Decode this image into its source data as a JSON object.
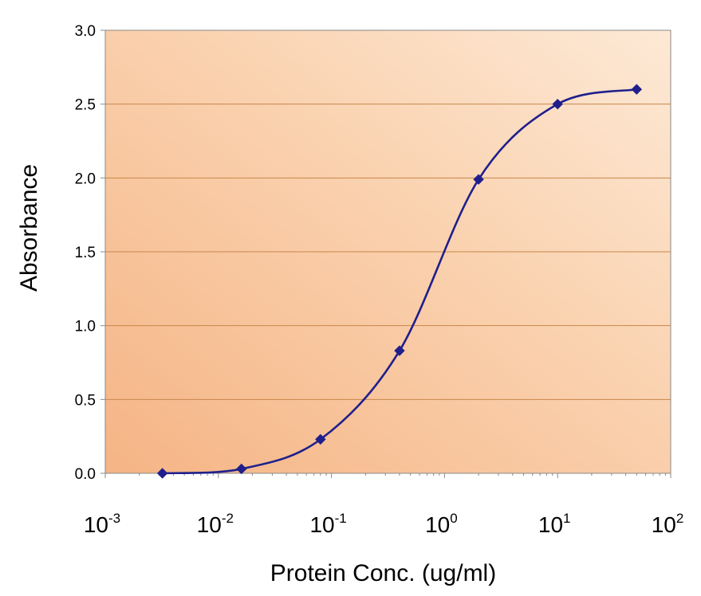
{
  "chart_data": {
    "type": "line",
    "title": "",
    "xlabel": "Protein Conc. (ug/ml)",
    "ylabel": "Absorbance",
    "x_scale": "log10",
    "xlim": [
      0.001,
      100
    ],
    "ylim": [
      0,
      3.0
    ],
    "y_ticks": [
      "0.0",
      "0.5",
      "1.0",
      "1.5",
      "2.0",
      "2.5",
      "3.0"
    ],
    "x_ticks": [
      {
        "base": "10",
        "exp": "-3"
      },
      {
        "base": "10",
        "exp": "-2"
      },
      {
        "base": "10",
        "exp": "-1"
      },
      {
        "base": "10",
        "exp": "0"
      },
      {
        "base": "10",
        "exp": "1"
      },
      {
        "base": "10",
        "exp": "2"
      }
    ],
    "grid": true,
    "legend": "none",
    "series": [
      {
        "x": [
          0.0032,
          0.016,
          0.08,
          0.4,
          2,
          10,
          50
        ],
        "y": [
          0.0,
          0.03,
          0.23,
          0.83,
          1.99,
          2.5,
          2.6
        ],
        "color": "#1f1f8c"
      }
    ],
    "colors": {
      "plot_bg_light": "#fde9d6",
      "plot_bg_dark": "#f7b98a",
      "gridline": "#c8874a",
      "series": "#1f1f8c"
    }
  }
}
